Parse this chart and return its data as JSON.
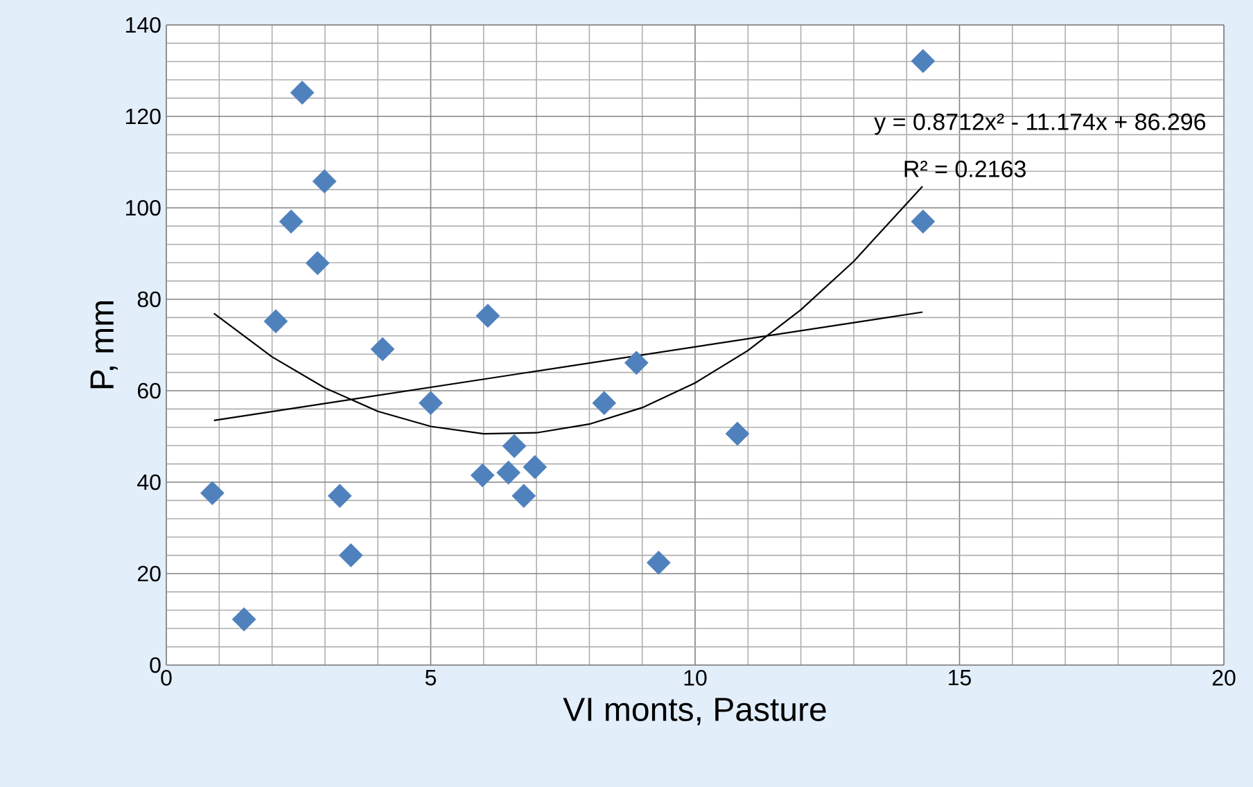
{
  "chart_data": {
    "type": "scatter",
    "xlabel": "VI monts, Pasture",
    "ylabel": "P, mm",
    "xlim": [
      0,
      20
    ],
    "ylim": [
      0,
      140
    ],
    "xticks": [
      0,
      5,
      10,
      15,
      20
    ],
    "yticks": [
      0,
      20,
      40,
      60,
      80,
      100,
      120,
      140
    ],
    "grid": true,
    "marker": "diamond",
    "annotations": [
      "y = 0.8712x² - 11.174x + 86.296",
      "R² = 0.2163"
    ],
    "series": [
      {
        "color": "#4f81bd",
        "x": [
          0.87,
          1.47,
          2.07,
          2.36,
          2.57,
          2.86,
          2.99,
          3.28,
          3.49,
          4.09,
          5.0,
          5.98,
          6.08,
          6.47,
          6.58,
          6.76,
          6.97,
          8.28,
          8.89,
          9.31,
          10.8,
          14.31,
          14.31
        ],
        "values": [
          37.6,
          10,
          75.2,
          97,
          125.2,
          87.9,
          105.8,
          37,
          24,
          69.1,
          57.3,
          41.5,
          76.4,
          42.1,
          47.9,
          37,
          43.3,
          57.3,
          66.1,
          22.4,
          50.6,
          132.1,
          97
        ]
      },
      {
        "type": "line",
        "color": "#000000",
        "marker": "none",
        "x": [
          0.9,
          2,
          3,
          4,
          5,
          6,
          7,
          8,
          9,
          10,
          11,
          12,
          13,
          14.3
        ],
        "values": [
          76.9,
          67.4,
          60.6,
          55.5,
          52.2,
          50.6,
          50.8,
          52.7,
          56.3,
          61.7,
          68.8,
          77.7,
          88.3,
          104.7
        ]
      },
      {
        "type": "line",
        "color": "#000000",
        "marker": "none",
        "x": [
          0.9,
          14.3
        ],
        "values": [
          53.5,
          77.2
        ]
      }
    ]
  }
}
